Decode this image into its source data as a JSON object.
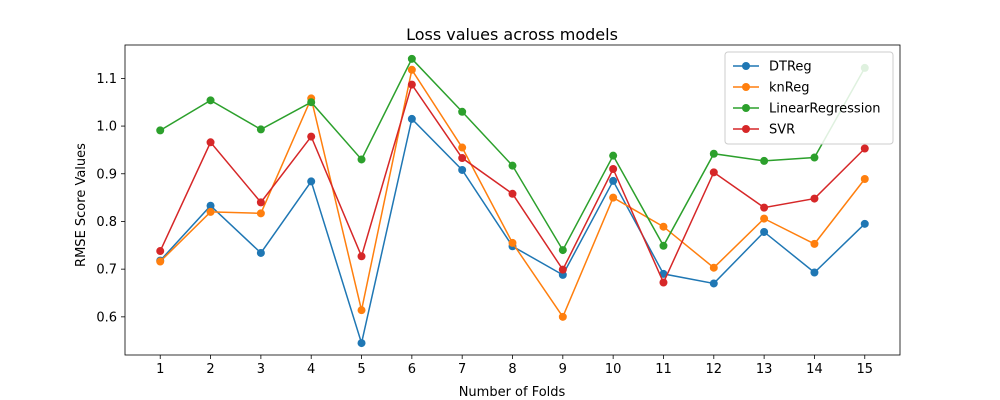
{
  "chart_data": {
    "type": "line",
    "title": "Loss values across models",
    "xlabel": "Number of Folds",
    "ylabel": "RMSE Score Values",
    "x": [
      1,
      2,
      3,
      4,
      5,
      6,
      7,
      8,
      9,
      10,
      11,
      12,
      13,
      14,
      15
    ],
    "x_ticks": [
      "1",
      "2",
      "3",
      "4",
      "5",
      "6",
      "7",
      "8",
      "9",
      "10",
      "11",
      "12",
      "13",
      "14",
      "15"
    ],
    "y_ticks": [
      "0.6",
      "0.7",
      "0.8",
      "0.9",
      "1.0",
      "1.1"
    ],
    "xlim": [
      0.3,
      15.7
    ],
    "ylim": [
      0.52,
      1.17
    ],
    "grid": false,
    "legend_position": "top-right",
    "series": [
      {
        "name": "DTReg",
        "color": "#1f77b4",
        "values": [
          0.718,
          0.833,
          0.734,
          0.884,
          0.545,
          1.015,
          0.908,
          0.748,
          0.688,
          0.885,
          0.69,
          0.67,
          0.778,
          0.693,
          0.795
        ]
      },
      {
        "name": "knReg",
        "color": "#ff7f0e",
        "values": [
          0.716,
          0.82,
          0.817,
          1.058,
          0.614,
          1.118,
          0.955,
          0.755,
          0.6,
          0.85,
          0.789,
          0.703,
          0.806,
          0.753,
          0.889
        ]
      },
      {
        "name": "LinearRegression",
        "color": "#2ca02c",
        "values": [
          0.991,
          1.054,
          0.993,
          1.05,
          0.93,
          1.141,
          1.03,
          0.917,
          0.74,
          0.938,
          0.749,
          0.942,
          0.927,
          0.934,
          1.122
        ]
      },
      {
        "name": "SVR",
        "color": "#d62728",
        "values": [
          0.738,
          0.966,
          0.84,
          0.978,
          0.727,
          1.087,
          0.933,
          0.858,
          0.699,
          0.91,
          0.672,
          0.903,
          0.829,
          0.848,
          0.953
        ]
      }
    ]
  }
}
